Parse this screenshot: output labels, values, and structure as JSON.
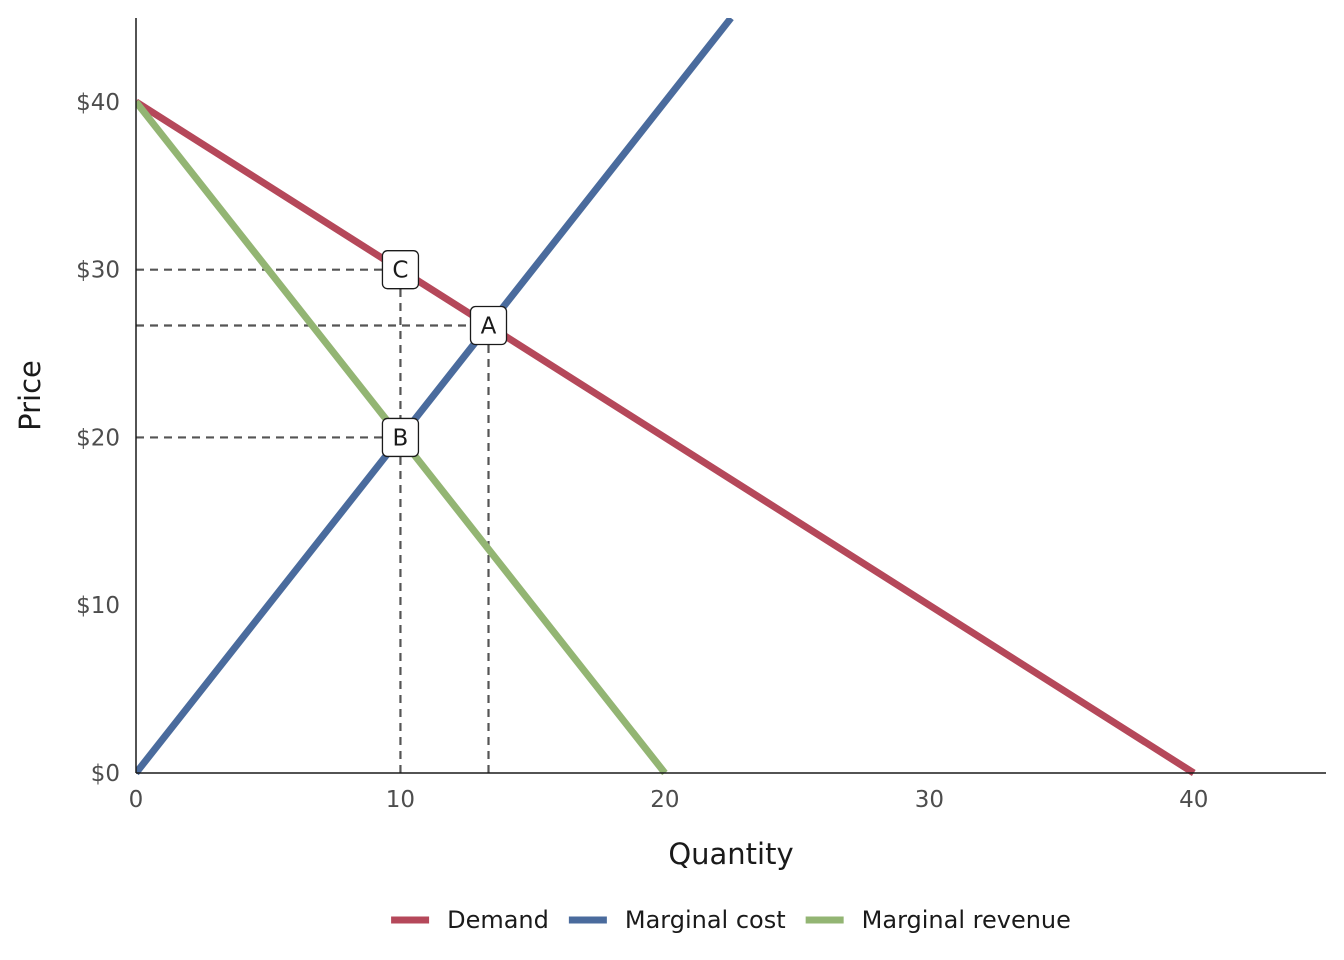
{
  "chart_data": {
    "type": "line",
    "xlabel": "Quantity",
    "ylabel": "Price",
    "xlim": [
      0,
      45
    ],
    "ylim": [
      0,
      45
    ],
    "x_ticks": [
      {
        "value": 0,
        "label": "0"
      },
      {
        "value": 10,
        "label": "10"
      },
      {
        "value": 20,
        "label": "20"
      },
      {
        "value": 30,
        "label": "30"
      },
      {
        "value": 40,
        "label": "40"
      }
    ],
    "y_ticks": [
      {
        "value": 0,
        "label": "$0"
      },
      {
        "value": 10,
        "label": "$10"
      },
      {
        "value": 20,
        "label": "$20"
      },
      {
        "value": 30,
        "label": "$30"
      },
      {
        "value": 40,
        "label": "$40"
      }
    ],
    "grid": false,
    "legend_position": "bottom",
    "series": [
      {
        "name": "Demand",
        "color": "#b5485a",
        "x": [
          0,
          40
        ],
        "y": [
          40,
          0
        ]
      },
      {
        "name": "Marginal cost",
        "color": "#4a6b9d",
        "x": [
          0,
          22.5
        ],
        "y": [
          0,
          45
        ]
      },
      {
        "name": "Marginal revenue",
        "color": "#93b573",
        "x": [
          0,
          20
        ],
        "y": [
          40,
          0
        ]
      }
    ],
    "annotations": [
      {
        "label": "C",
        "x": 10,
        "y": 30
      },
      {
        "label": "A",
        "x": 13.33,
        "y": 26.67
      },
      {
        "label": "B",
        "x": 10,
        "y": 20
      }
    ],
    "guide_lines": [
      {
        "from": [
          0,
          30
        ],
        "to": [
          10,
          30
        ]
      },
      {
        "from": [
          0,
          26.67
        ],
        "to": [
          13.33,
          26.67
        ]
      },
      {
        "from": [
          0,
          20
        ],
        "to": [
          10,
          20
        ]
      },
      {
        "from": [
          10,
          0
        ],
        "to": [
          10,
          30
        ]
      },
      {
        "from": [
          13.33,
          0
        ],
        "to": [
          13.33,
          26.67
        ]
      }
    ]
  }
}
